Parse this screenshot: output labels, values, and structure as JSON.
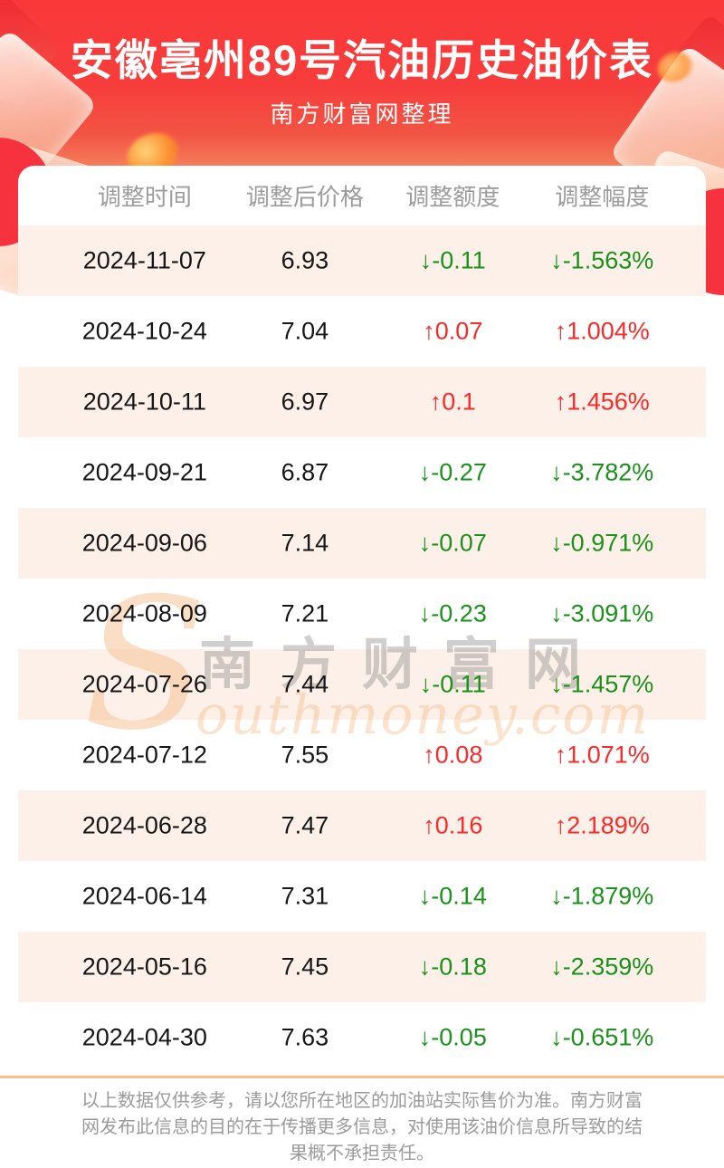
{
  "header": {
    "title": "安徽亳州89号汽油历史油价表",
    "subtitle": "南方财富网整理"
  },
  "table": {
    "headers": [
      "调整时间",
      "调整后价格",
      "调整额度",
      "调整幅度"
    ],
    "rows": [
      {
        "date": "2024-11-07",
        "price": "6.93",
        "change": "-0.11",
        "pct": "-1.563%",
        "direction": "down"
      },
      {
        "date": "2024-10-24",
        "price": "7.04",
        "change": "0.07",
        "pct": "1.004%",
        "direction": "up"
      },
      {
        "date": "2024-10-11",
        "price": "6.97",
        "change": "0.1",
        "pct": "1.456%",
        "direction": "up"
      },
      {
        "date": "2024-09-21",
        "price": "6.87",
        "change": "-0.27",
        "pct": "-3.782%",
        "direction": "down"
      },
      {
        "date": "2024-09-06",
        "price": "7.14",
        "change": "-0.07",
        "pct": "-0.971%",
        "direction": "down"
      },
      {
        "date": "2024-08-09",
        "price": "7.21",
        "change": "-0.23",
        "pct": "-3.091%",
        "direction": "down"
      },
      {
        "date": "2024-07-26",
        "price": "7.44",
        "change": "-0.11",
        "pct": "-1.457%",
        "direction": "down"
      },
      {
        "date": "2024-07-12",
        "price": "7.55",
        "change": "0.08",
        "pct": "1.071%",
        "direction": "up"
      },
      {
        "date": "2024-06-28",
        "price": "7.47",
        "change": "0.16",
        "pct": "2.189%",
        "direction": "up"
      },
      {
        "date": "2024-06-14",
        "price": "7.31",
        "change": "-0.14",
        "pct": "-1.879%",
        "direction": "down"
      },
      {
        "date": "2024-05-16",
        "price": "7.45",
        "change": "-0.18",
        "pct": "-2.359%",
        "direction": "down"
      },
      {
        "date": "2024-04-30",
        "price": "7.63",
        "change": "-0.05",
        "pct": "-0.651%",
        "direction": "down"
      }
    ]
  },
  "chart_data": {
    "type": "table",
    "title": "安徽亳州89号汽油历史油价表",
    "columns": [
      "调整时间",
      "调整后价格",
      "调整额度",
      "调整幅度"
    ],
    "rows": [
      [
        "2024-11-07",
        6.93,
        -0.11,
        "-1.563%"
      ],
      [
        "2024-10-24",
        7.04,
        0.07,
        "1.004%"
      ],
      [
        "2024-10-11",
        6.97,
        0.1,
        "1.456%"
      ],
      [
        "2024-09-21",
        6.87,
        -0.27,
        "-3.782%"
      ],
      [
        "2024-09-06",
        7.14,
        -0.07,
        "-0.971%"
      ],
      [
        "2024-08-09",
        7.21,
        -0.23,
        "-3.091%"
      ],
      [
        "2024-07-26",
        7.44,
        -0.11,
        "-1.457%"
      ],
      [
        "2024-07-12",
        7.55,
        0.08,
        "1.071%"
      ],
      [
        "2024-06-28",
        7.47,
        0.16,
        "2.189%"
      ],
      [
        "2024-06-14",
        7.31,
        -0.14,
        "-1.879%"
      ],
      [
        "2024-05-16",
        7.45,
        -0.18,
        "-2.359%"
      ],
      [
        "2024-04-30",
        7.63,
        -0.05,
        "-0.651%"
      ]
    ]
  },
  "watermark": {
    "s": "S",
    "cn": "南方财富网",
    "en": "outhmoney.com"
  },
  "footer": {
    "disclaimer": "以上数据仅供参考，请以您所在地区的加油站实际售价为准。南方财富网发布此信息的目的在于传播更多信息，对使用该油价信息所导致的结果概不承担责任。"
  },
  "icons": {
    "up_arrow": "↑",
    "down_arrow": "↓"
  },
  "colors": {
    "up": "#f92a2a",
    "down": "#1a911a",
    "stripe": "#fdf0e8",
    "divider": "#f6c088",
    "hero_red": "#fa383a"
  }
}
